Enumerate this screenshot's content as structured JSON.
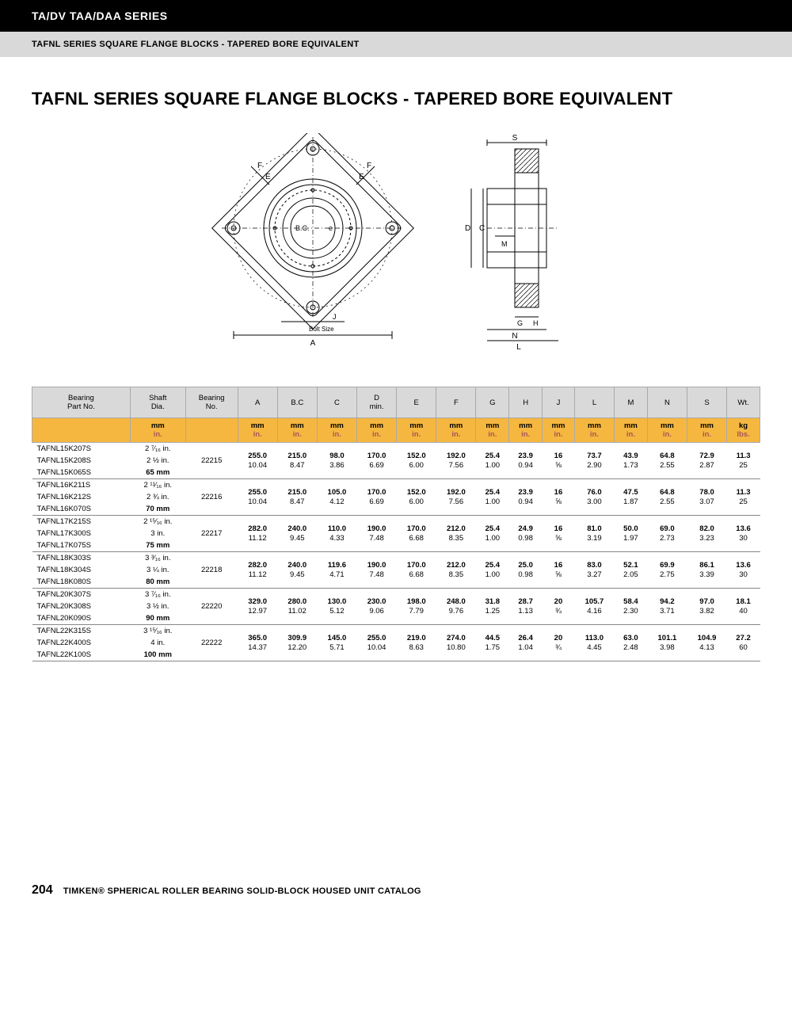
{
  "header": {
    "series": "TA/DV TAA/DAA SERIES",
    "section": "TAFNL SERIES SQUARE FLANGE BLOCKS - TAPERED BORE EQUIVALENT"
  },
  "title": "TAFNL SERIES SQUARE FLANGE BLOCKS - TAPERED BORE EQUIVALENT",
  "diagram": {
    "front_labels": {
      "F": "F",
      "E": "E",
      "BC": "B.C.",
      "J": "J",
      "BoltSize": "Bolt Size",
      "A": "A",
      "e": "e"
    },
    "side_labels": {
      "S": "S",
      "D": "D",
      "C": "C",
      "M": "M",
      "G": "G",
      "H": "H",
      "N": "N",
      "L": "L"
    }
  },
  "units": {
    "mm": "mm",
    "in": "in.",
    "kg": "kg",
    "lbs": "lbs."
  },
  "columns": [
    "Bearing\nPart No.",
    "Shaft\nDia.",
    "Bearing\nNo.",
    "A",
    "B.C",
    "C",
    "D\nmin.",
    "E",
    "F",
    "G",
    "H",
    "J",
    "L",
    "M",
    "N",
    "S",
    "Wt."
  ],
  "footer": {
    "page": "204",
    "catalog": "TIMKEN® SPHERICAL ROLLER BEARING SOLID-BLOCK HOUSED UNIT CATALOG"
  },
  "groups": [
    {
      "bearing_no": "22215",
      "parts": [
        {
          "no": "TAFNL15K207S",
          "shaft": "2 ⁷⁄₁₆ in."
        },
        {
          "no": "TAFNL15K208S",
          "shaft": "2 ½ in."
        },
        {
          "no": "TAFNL15K065S",
          "shaft": "65 mm",
          "bold": true
        }
      ],
      "dims": {
        "A": [
          "255.0",
          "10.04"
        ],
        "BC": [
          "215.0",
          "8.47"
        ],
        "C": [
          "98.0",
          "3.86"
        ],
        "D": [
          "170.0",
          "6.69"
        ],
        "E": [
          "152.0",
          "6.00"
        ],
        "F": [
          "192.0",
          "7.56"
        ],
        "G": [
          "25.4",
          "1.00"
        ],
        "H": [
          "23.9",
          "0.94"
        ],
        "J": [
          "16",
          "⅝"
        ],
        "L": [
          "73.7",
          "2.90"
        ],
        "M": [
          "43.9",
          "1.73"
        ],
        "N": [
          "64.8",
          "2.55"
        ],
        "S": [
          "72.9",
          "2.87"
        ],
        "Wt": [
          "11.3",
          "25"
        ]
      }
    },
    {
      "bearing_no": "22216",
      "parts": [
        {
          "no": "TAFNL16K211S",
          "shaft": "2 ¹¹⁄₁₆ in."
        },
        {
          "no": "TAFNL16K212S",
          "shaft": "2 ¾ in."
        },
        {
          "no": "TAFNL16K070S",
          "shaft": "70 mm",
          "bold": true
        }
      ],
      "dims": {
        "A": [
          "255.0",
          "10.04"
        ],
        "BC": [
          "215.0",
          "8.47"
        ],
        "C": [
          "105.0",
          "4.12"
        ],
        "D": [
          "170.0",
          "6.69"
        ],
        "E": [
          "152.0",
          "6.00"
        ],
        "F": [
          "192.0",
          "7.56"
        ],
        "G": [
          "25.4",
          "1.00"
        ],
        "H": [
          "23.9",
          "0.94"
        ],
        "J": [
          "16",
          "⅝"
        ],
        "L": [
          "76.0",
          "3.00"
        ],
        "M": [
          "47.5",
          "1.87"
        ],
        "N": [
          "64.8",
          "2.55"
        ],
        "S": [
          "78.0",
          "3.07"
        ],
        "Wt": [
          "11.3",
          "25"
        ]
      }
    },
    {
      "bearing_no": "22217",
      "parts": [
        {
          "no": "TAFNL17K215S",
          "shaft": "2 ¹⁵⁄₁₆ in."
        },
        {
          "no": "TAFNL17K300S",
          "shaft": "3 in."
        },
        {
          "no": "TAFNL17K075S",
          "shaft": "75 mm",
          "bold": true
        }
      ],
      "dims": {
        "A": [
          "282.0",
          "11.12"
        ],
        "BC": [
          "240.0",
          "9.45"
        ],
        "C": [
          "110.0",
          "4.33"
        ],
        "D": [
          "190.0",
          "7.48"
        ],
        "E": [
          "170.0",
          "6.68"
        ],
        "F": [
          "212.0",
          "8.35"
        ],
        "G": [
          "25.4",
          "1.00"
        ],
        "H": [
          "24.9",
          "0.98"
        ],
        "J": [
          "16",
          "⅝"
        ],
        "L": [
          "81.0",
          "3.19"
        ],
        "M": [
          "50.0",
          "1.97"
        ],
        "N": [
          "69.0",
          "2.73"
        ],
        "S": [
          "82.0",
          "3.23"
        ],
        "Wt": [
          "13.6",
          "30"
        ]
      }
    },
    {
      "bearing_no": "22218",
      "parts": [
        {
          "no": "TAFNL18K303S",
          "shaft": "3 ³⁄₁₆ in."
        },
        {
          "no": "TAFNL18K304S",
          "shaft": "3 ¼ in."
        },
        {
          "no": "TAFNL18K080S",
          "shaft": "80 mm",
          "bold": true
        }
      ],
      "dims": {
        "A": [
          "282.0",
          "11.12"
        ],
        "BC": [
          "240.0",
          "9.45"
        ],
        "C": [
          "119.6",
          "4.71"
        ],
        "D": [
          "190.0",
          "7.48"
        ],
        "E": [
          "170.0",
          "6.68"
        ],
        "F": [
          "212.0",
          "8.35"
        ],
        "G": [
          "25.4",
          "1.00"
        ],
        "H": [
          "25.0",
          "0.98"
        ],
        "J": [
          "16",
          "⅝"
        ],
        "L": [
          "83.0",
          "3.27"
        ],
        "M": [
          "52.1",
          "2.05"
        ],
        "N": [
          "69.9",
          "2.75"
        ],
        "S": [
          "86.1",
          "3.39"
        ],
        "Wt": [
          "13.6",
          "30"
        ]
      }
    },
    {
      "bearing_no": "22220",
      "parts": [
        {
          "no": "TAFNL20K307S",
          "shaft": "3 ⁷⁄₁₆ in."
        },
        {
          "no": "TAFNL20K308S",
          "shaft": "3 ½ in."
        },
        {
          "no": "TAFNL20K090S",
          "shaft": "90 mm",
          "bold": true
        }
      ],
      "dims": {
        "A": [
          "329.0",
          "12.97"
        ],
        "BC": [
          "280.0",
          "11.02"
        ],
        "C": [
          "130.0",
          "5.12"
        ],
        "D": [
          "230.0",
          "9.06"
        ],
        "E": [
          "198.0",
          "7.79"
        ],
        "F": [
          "248.0",
          "9.76"
        ],
        "G": [
          "31.8",
          "1.25"
        ],
        "H": [
          "28.7",
          "1.13"
        ],
        "J": [
          "20",
          "¾"
        ],
        "L": [
          "105.7",
          "4.16"
        ],
        "M": [
          "58.4",
          "2.30"
        ],
        "N": [
          "94.2",
          "3.71"
        ],
        "S": [
          "97.0",
          "3.82"
        ],
        "Wt": [
          "18.1",
          "40"
        ]
      }
    },
    {
      "bearing_no": "22222",
      "parts": [
        {
          "no": "TAFNL22K315S",
          "shaft": "3 ¹⁵⁄₁₆ in."
        },
        {
          "no": "TAFNL22K400S",
          "shaft": "4 in."
        },
        {
          "no": "TAFNL22K100S",
          "shaft": "100 mm",
          "bold": true
        }
      ],
      "dims": {
        "A": [
          "365.0",
          "14.37"
        ],
        "BC": [
          "309.9",
          "12.20"
        ],
        "C": [
          "145.0",
          "5.71"
        ],
        "D": [
          "255.0",
          "10.04"
        ],
        "E": [
          "219.0",
          "8.63"
        ],
        "F": [
          "274.0",
          "10.80"
        ],
        "G": [
          "44.5",
          "1.75"
        ],
        "H": [
          "26.4",
          "1.04"
        ],
        "J": [
          "20",
          "¾"
        ],
        "L": [
          "113.0",
          "4.45"
        ],
        "M": [
          "63.0",
          "2.48"
        ],
        "N": [
          "101.1",
          "3.98"
        ],
        "S": [
          "104.9",
          "4.13"
        ],
        "Wt": [
          "27.2",
          "60"
        ]
      }
    }
  ]
}
